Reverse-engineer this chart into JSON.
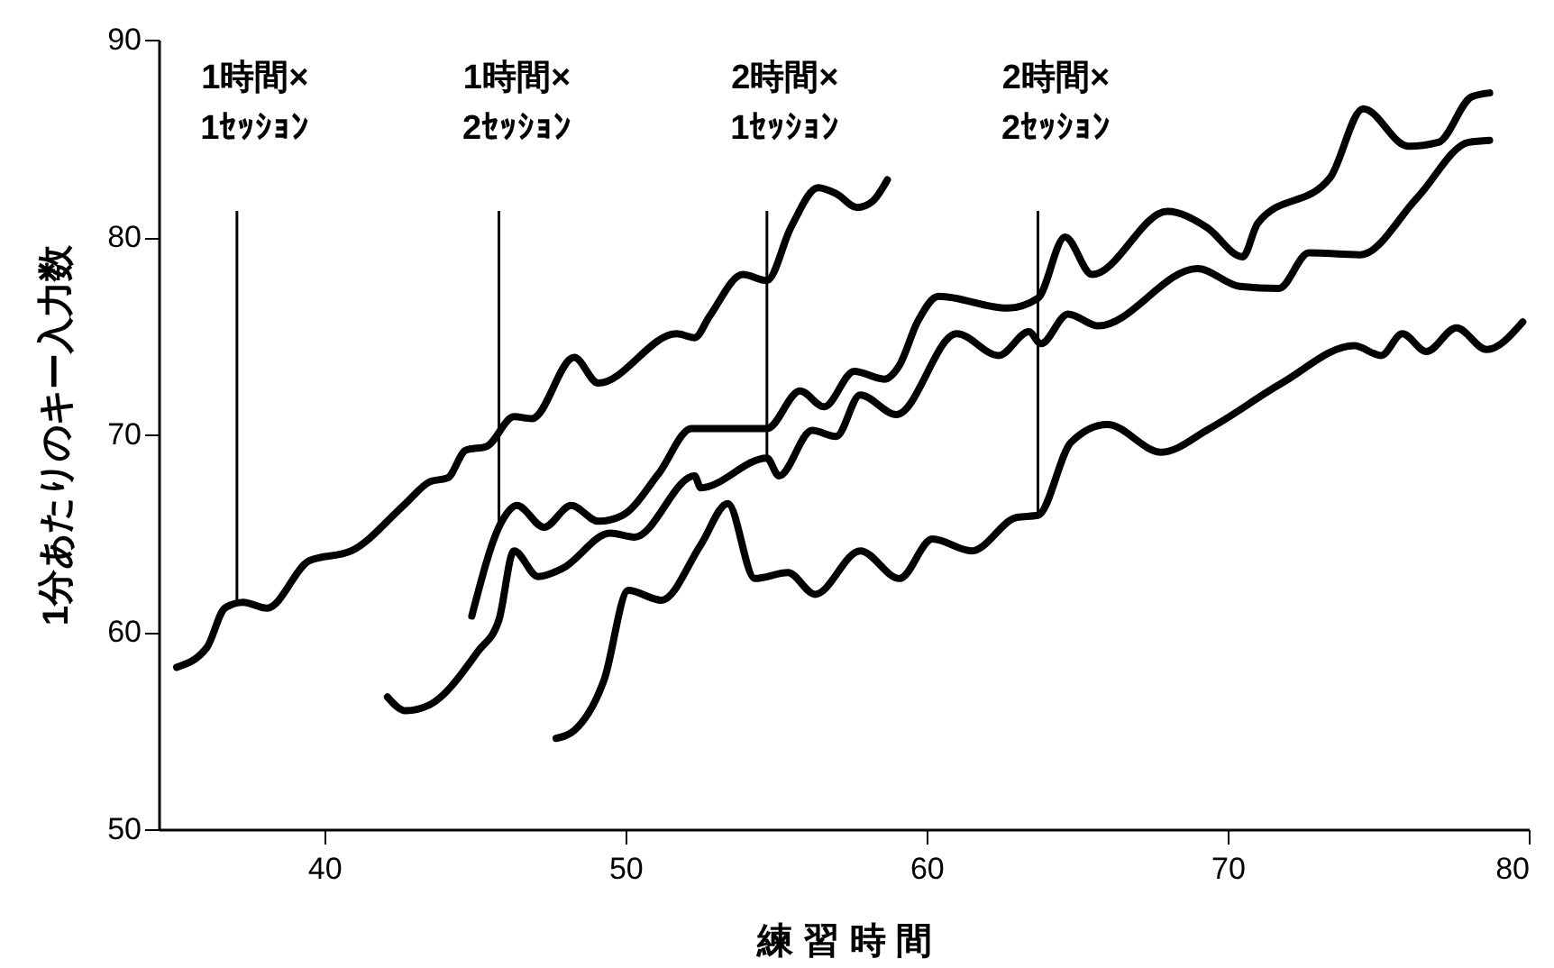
{
  "chart_data": {
    "type": "line",
    "xlabel": "練 習 時 間",
    "ylabel": "1分あたりのキー入力数",
    "xlim": [
      34.5,
      80
    ],
    "xticks": [
      40,
      50,
      60,
      70,
      80
    ],
    "ylim": [
      50,
      90
    ],
    "yticks": [
      50,
      60,
      70,
      80,
      90
    ],
    "grid": false,
    "legend": false,
    "marker": "none",
    "line_style": "solid",
    "series": [
      {
        "color": "#000000",
        "x": [
          35.1,
          36.1,
          36.7,
          37.3,
          38.1,
          39.5,
          40.9,
          42.7,
          43.5,
          44.1,
          44.7,
          45.4,
          46.3,
          46.9,
          48.3,
          49.1,
          51.7,
          52.3,
          52.8,
          53.9,
          54.7,
          55.5,
          56.4,
          57.0,
          57.7,
          58.2,
          58.7
        ],
        "values": [
          58.2,
          59.2,
          61.2,
          61.5,
          61.2,
          63.6,
          64.1,
          66.5,
          67.6,
          67.8,
          69.2,
          69.4,
          70.9,
          70.8,
          73.9,
          72.6,
          75.1,
          74.9,
          76.0,
          78.1,
          77.8,
          80.5,
          82.5,
          82.2,
          81.5,
          81.8,
          82.9
        ]
      },
      {
        "color": "#000000",
        "x": [
          44.9,
          45.9,
          46.4,
          47.3,
          48.2,
          49.1,
          49.9,
          51.1,
          52.2,
          54.7,
          55.8,
          56.6,
          57.6,
          58.6,
          59.1,
          59.7,
          60.4,
          62.7,
          63.7,
          64.6,
          65.5,
          68.0,
          69.3,
          70.5,
          71.0,
          73.4,
          74.5,
          76.0,
          77.0,
          78.1,
          78.7
        ],
        "values": [
          60.8,
          65.6,
          66.4,
          65.3,
          66.4,
          65.6,
          65.9,
          68.0,
          70.3,
          70.3,
          72.2,
          71.4,
          73.2,
          72.8,
          73.5,
          75.7,
          77.0,
          76.4,
          76.9,
          80.0,
          78.1,
          81.3,
          80.5,
          79.0,
          80.7,
          83.0,
          86.5,
          84.6,
          84.8,
          87.1,
          87.3
        ]
      },
      {
        "color": "#000000",
        "x": [
          42.1,
          42.7,
          43.5,
          45.1,
          45.8,
          46.3,
          47.1,
          47.9,
          49.5,
          50.3,
          52.3,
          52.5,
          54.7,
          55.1,
          56.2,
          57.0,
          57.8,
          59.0,
          61.0,
          62.4,
          63.4,
          63.8,
          64.7,
          65.7,
          69.0,
          70.4,
          71.7,
          72.7,
          74.4,
          76.3,
          78.0,
          78.7
        ],
        "values": [
          56.7,
          56.0,
          56.3,
          59.0,
          60.6,
          64.1,
          62.8,
          63.2,
          65.0,
          64.8,
          67.9,
          67.3,
          68.8,
          67.9,
          70.2,
          69.9,
          72.0,
          71.0,
          75.1,
          74.0,
          75.2,
          74.6,
          76.1,
          75.5,
          78.4,
          77.5,
          77.4,
          79.2,
          79.1,
          82.0,
          84.8,
          84.9
        ]
      },
      {
        "color": "#000000",
        "x": [
          47.7,
          48.3,
          49.3,
          50.1,
          51.2,
          52.5,
          53.4,
          54.3,
          55.4,
          56.3,
          57.8,
          59.1,
          60.2,
          61.5,
          63.0,
          63.7,
          64.8,
          66.0,
          67.8,
          69.4,
          71.8,
          74.2,
          75.1,
          75.8,
          76.6,
          77.6,
          78.6,
          79.8
        ],
        "values": [
          54.6,
          55.0,
          57.6,
          62.1,
          61.6,
          64.4,
          66.5,
          62.7,
          63.0,
          61.9,
          64.1,
          62.7,
          64.7,
          64.1,
          65.8,
          65.9,
          69.6,
          70.5,
          69.1,
          70.3,
          72.6,
          74.5,
          74.0,
          75.1,
          74.2,
          75.4,
          74.3,
          75.7
        ]
      }
    ],
    "ref_lines": [
      {
        "axis": "x",
        "value": 37.1,
        "label": "1時間×\n1ｾｯｼｮﾝ"
      },
      {
        "axis": "x",
        "value": 45.8,
        "label": "1時間×\n2ｾｯｼｮﾝ"
      },
      {
        "axis": "x",
        "value": 54.7,
        "label": "2時間×\n1ｾｯｼｮﾝ"
      },
      {
        "axis": "x",
        "value": 63.7,
        "label": "2時間×\n2ｾｯｼｮﾝ"
      }
    ]
  }
}
